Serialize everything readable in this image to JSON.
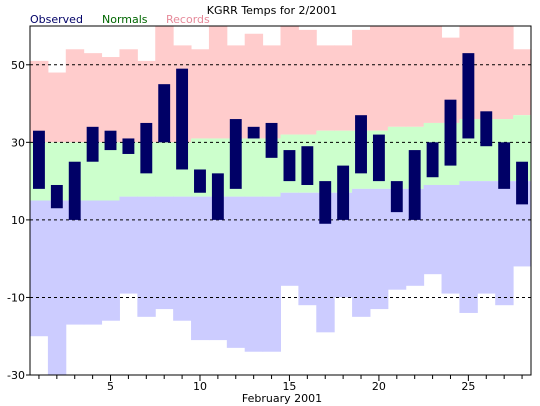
{
  "chart_data": {
    "type": "bar",
    "title": "KGRR Temps for 2/2001",
    "xlabel": "February 2001",
    "ylabel": "",
    "ylim": [
      -30,
      60
    ],
    "xlim": [
      0.5,
      28.5
    ],
    "yticks": [
      -30,
      -10,
      10,
      30,
      50
    ],
    "xticks": [
      5,
      10,
      15,
      20,
      25
    ],
    "grid": "dashed horizontal at 50, 30, 10, -10",
    "legend": [
      {
        "name": "Observed",
        "color": "#000066"
      },
      {
        "name": "Normals",
        "color": "#006600"
      },
      {
        "name": "Records",
        "color": "#e68a9a"
      }
    ],
    "days": [
      1,
      2,
      3,
      4,
      5,
      6,
      7,
      8,
      9,
      10,
      11,
      12,
      13,
      14,
      15,
      16,
      17,
      18,
      19,
      20,
      21,
      22,
      23,
      24,
      25,
      26,
      27,
      28
    ],
    "records": {
      "high": [
        51,
        48,
        54,
        53,
        52,
        54,
        51,
        60,
        55,
        54,
        69,
        55,
        58,
        55,
        61,
        59,
        55,
        55,
        59,
        61,
        66,
        67,
        63,
        57,
        61,
        65,
        67,
        54
      ],
      "low": [
        -20,
        -30,
        -17,
        -17,
        -16,
        -9,
        -15,
        -13,
        -16,
        -21,
        -21,
        -23,
        -24,
        -24,
        -7,
        -12,
        -19,
        -10,
        -15,
        -13,
        -8,
        -7,
        -4,
        -9,
        -14,
        -9,
        -12,
        -2
      ]
    },
    "normals": {
      "high": [
        30,
        30,
        30,
        30,
        30,
        30,
        30,
        30,
        30,
        31,
        31,
        31,
        31,
        31,
        32,
        32,
        33,
        33,
        33,
        33,
        34,
        34,
        35,
        35,
        36,
        36,
        36,
        37
      ],
      "low": [
        15,
        15,
        15,
        15,
        15,
        16,
        16,
        16,
        16,
        16,
        16,
        16,
        16,
        16,
        17,
        17,
        17,
        17,
        18,
        18,
        18,
        18,
        19,
        19,
        20,
        20,
        20,
        20
      ]
    },
    "observed": {
      "high": [
        33,
        19,
        25,
        34,
        33,
        31,
        35,
        45,
        49,
        23,
        22,
        36,
        34,
        35,
        28,
        29,
        20,
        24,
        37,
        32,
        20,
        28,
        30,
        41,
        53,
        38,
        30,
        25
      ],
      "low": [
        18,
        13,
        10,
        25,
        28,
        27,
        22,
        30,
        23,
        17,
        10,
        18,
        31,
        26,
        20,
        19,
        9,
        10,
        22,
        20,
        12,
        10,
        21,
        24,
        31,
        29,
        18,
        14
      ]
    }
  },
  "colors": {
    "plot_bg": "#ffffff",
    "record_high_fill": "#ffcccc",
    "normal_fill": "#ccffcc",
    "record_low_fill": "#ccccff",
    "observed_fill": "#000066",
    "grid": "#000000",
    "axis": "#000000"
  }
}
